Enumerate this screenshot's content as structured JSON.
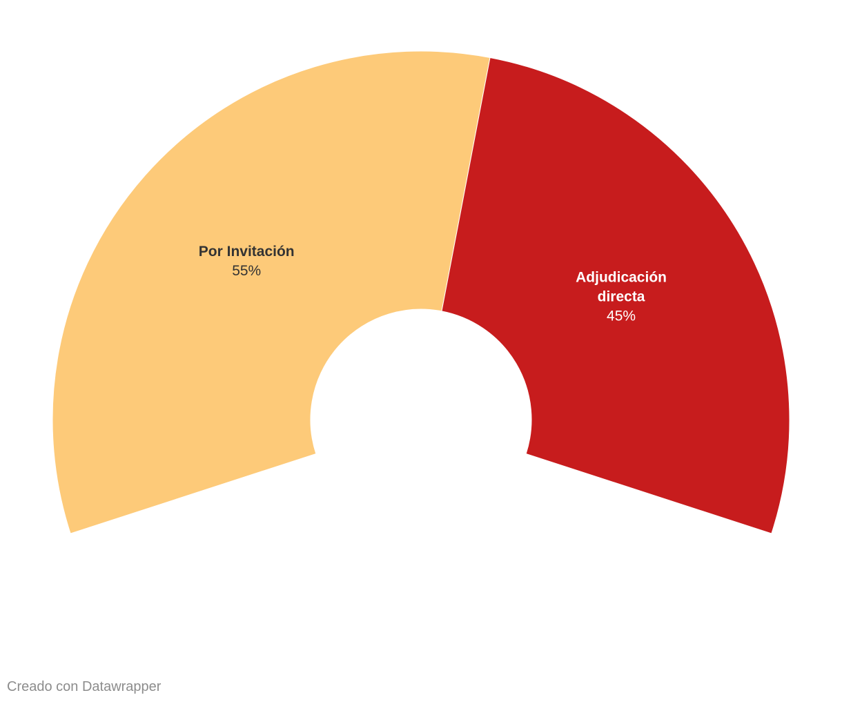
{
  "chart_data": {
    "type": "pie",
    "variant": "semi-donut",
    "categories": [
      "Por Invitación",
      "Adjudicación directa"
    ],
    "values": [
      55,
      45
    ],
    "value_labels": [
      "55%",
      "45%"
    ],
    "colors": [
      "#fdca79",
      "#c71c1d"
    ],
    "label_colors": [
      "#333333",
      "#ffffff"
    ]
  },
  "footer": {
    "credit": "Creado con Datawrapper"
  }
}
